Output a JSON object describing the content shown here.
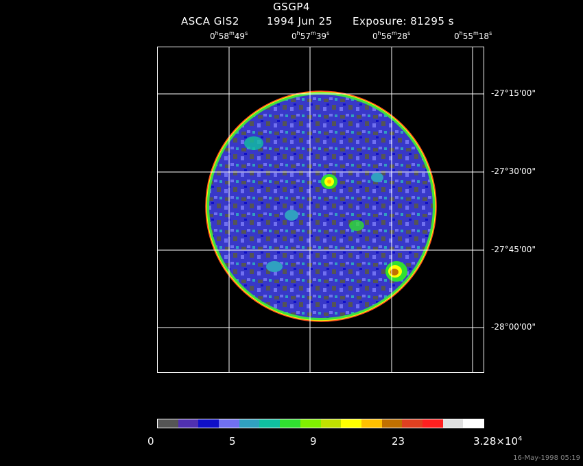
{
  "header": {
    "title": "GSGP4",
    "instrument": "ASCA GIS2",
    "date": "1994 Jun 25",
    "exposure": "Exposure: 81295 s"
  },
  "ra_labels": [
    {
      "h": "0",
      "m": "58",
      "s": "49"
    },
    {
      "h": "0",
      "m": "57",
      "s": "39"
    },
    {
      "h": "0",
      "m": "56",
      "s": "28"
    },
    {
      "h": "0",
      "m": "55",
      "s": "18"
    }
  ],
  "dec_labels": [
    "-27°15'00\"",
    "-27°30'00\"",
    "-27°45'00\"",
    "-28°00'00\""
  ],
  "colorbar": {
    "colors": [
      "#555555",
      "#5030b0",
      "#1010c8",
      "#7070f0",
      "#30a0c0",
      "#10c0a0",
      "#30e030",
      "#80f000",
      "#c0e000",
      "#ffff00",
      "#ffc000",
      "#c07000",
      "#e04020",
      "#ff2020",
      "#e0e0e0",
      "#ffffff"
    ],
    "labels": [
      "0",
      "5",
      "9",
      "23",
      "3.28×10"
    ],
    "exponent": "4"
  },
  "footer": "16-May-1998 05:19",
  "field": {
    "background_color": "#3838c8",
    "rim_colors": [
      "#ff5020",
      "#ffff00",
      "#40e040"
    ],
    "bright_sources": [
      {
        "name": "source-1",
        "colors": [
          "#30e030",
          "#ffff00",
          "#ffc000"
        ]
      },
      {
        "name": "source-2",
        "colors": [
          "#30e030",
          "#ffff00",
          "#c07000"
        ]
      }
    ]
  }
}
